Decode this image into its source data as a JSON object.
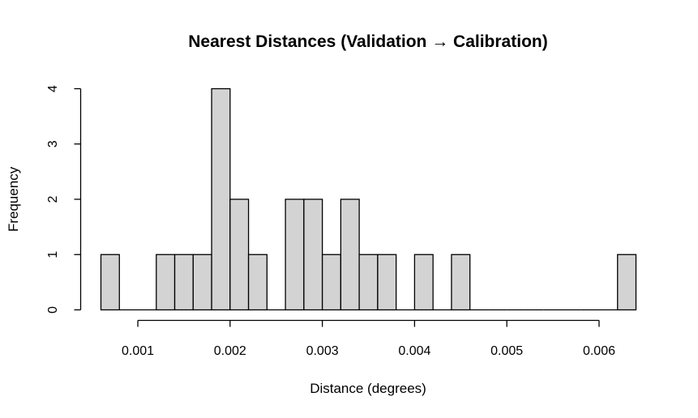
{
  "chart_data": {
    "type": "histogram",
    "title": "Nearest Distances (Validation → Calibration)",
    "xlabel": "Distance (degrees)",
    "ylabel": "Frequency",
    "bin_width": 0.0002,
    "bins": [
      {
        "start": 0.0006,
        "end": 0.0008,
        "count": 1
      },
      {
        "start": 0.0008,
        "end": 0.001,
        "count": 0
      },
      {
        "start": 0.001,
        "end": 0.0012,
        "count": 0
      },
      {
        "start": 0.0012,
        "end": 0.0014,
        "count": 1
      },
      {
        "start": 0.0014,
        "end": 0.0016,
        "count": 1
      },
      {
        "start": 0.0016,
        "end": 0.0018,
        "count": 1
      },
      {
        "start": 0.0018,
        "end": 0.002,
        "count": 4
      },
      {
        "start": 0.002,
        "end": 0.0022,
        "count": 2
      },
      {
        "start": 0.0022,
        "end": 0.0024,
        "count": 1
      },
      {
        "start": 0.0024,
        "end": 0.0026,
        "count": 0
      },
      {
        "start": 0.0026,
        "end": 0.0028,
        "count": 2
      },
      {
        "start": 0.0028,
        "end": 0.003,
        "count": 2
      },
      {
        "start": 0.003,
        "end": 0.0032,
        "count": 1
      },
      {
        "start": 0.0032,
        "end": 0.0034,
        "count": 2
      },
      {
        "start": 0.0034,
        "end": 0.0036,
        "count": 1
      },
      {
        "start": 0.0036,
        "end": 0.0038,
        "count": 1
      },
      {
        "start": 0.0038,
        "end": 0.004,
        "count": 0
      },
      {
        "start": 0.004,
        "end": 0.0042,
        "count": 1
      },
      {
        "start": 0.0042,
        "end": 0.0044,
        "count": 0
      },
      {
        "start": 0.0044,
        "end": 0.0046,
        "count": 1
      },
      {
        "start": 0.0046,
        "end": 0.0048,
        "count": 0
      },
      {
        "start": 0.0048,
        "end": 0.005,
        "count": 0
      },
      {
        "start": 0.005,
        "end": 0.0052,
        "count": 0
      },
      {
        "start": 0.0052,
        "end": 0.0054,
        "count": 0
      },
      {
        "start": 0.0054,
        "end": 0.0056,
        "count": 0
      },
      {
        "start": 0.0056,
        "end": 0.0058,
        "count": 0
      },
      {
        "start": 0.0058,
        "end": 0.006,
        "count": 0
      },
      {
        "start": 0.006,
        "end": 0.0062,
        "count": 0
      },
      {
        "start": 0.0062,
        "end": 0.0064,
        "count": 1
      }
    ],
    "x_ticks": [
      0.001,
      0.002,
      0.003,
      0.004,
      0.005,
      0.006
    ],
    "x_tick_labels": [
      "0.001",
      "0.002",
      "0.003",
      "0.004",
      "0.005",
      "0.006"
    ],
    "y_ticks": [
      0,
      1,
      2,
      3,
      4
    ],
    "y_tick_labels": [
      "0",
      "1",
      "2",
      "3",
      "4"
    ],
    "xlim": [
      0.0006,
      0.0064
    ],
    "ylim": [
      0,
      4
    ],
    "grid": false,
    "bar_color": "#d3d3d3",
    "bar_edge_color": "#000000"
  }
}
